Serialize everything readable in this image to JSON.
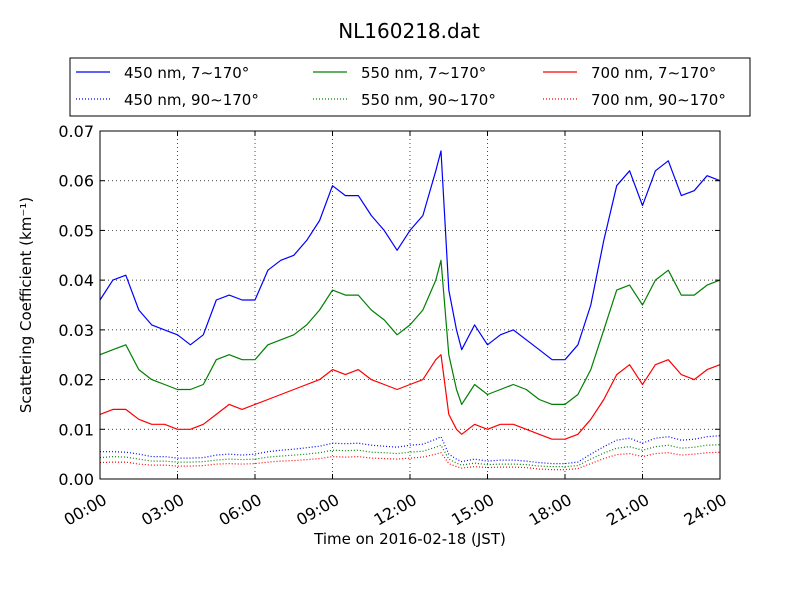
{
  "chart_data": {
    "type": "line",
    "title": "NL160218.dat",
    "xlabel": "Time on 2016-02-18 (JST)",
    "ylabel": "Scattering Coefficient (km⁻¹)",
    "x_unit": "hours",
    "xlim": [
      0,
      24
    ],
    "ylim": [
      0,
      0.07
    ],
    "x_ticks": [
      0,
      3,
      6,
      9,
      12,
      15,
      18,
      21,
      24
    ],
    "x_tick_labels": [
      "00:00",
      "03:00",
      "06:00",
      "09:00",
      "12:00",
      "15:00",
      "18:00",
      "21:00",
      "24:00"
    ],
    "y_ticks": [
      0,
      0.01,
      0.02,
      0.03,
      0.04,
      0.05,
      0.06,
      0.07
    ],
    "y_tick_labels": [
      "0.00",
      "0.01",
      "0.02",
      "0.03",
      "0.04",
      "0.05",
      "0.06",
      "0.07"
    ],
    "grid": true,
    "legend_position": "top, above plot, 3 columns",
    "x": [
      0,
      0.5,
      1,
      1.5,
      2,
      2.5,
      3,
      3.5,
      4,
      4.5,
      5,
      5.5,
      6,
      6.5,
      7,
      7.5,
      8,
      8.5,
      9,
      9.5,
      10,
      10.5,
      11,
      11.5,
      12,
      12.5,
      13,
      13.2,
      13.5,
      13.8,
      14,
      14.5,
      15,
      15.5,
      16,
      16.5,
      17,
      17.5,
      18,
      18.5,
      19,
      19.5,
      20,
      20.5,
      21,
      21.5,
      22,
      22.5,
      23,
      23.5,
      24
    ],
    "series": [
      {
        "name": "450 nm, 7∼170°",
        "color": "#0000ff",
        "style": "solid",
        "values": [
          0.036,
          0.04,
          0.041,
          0.034,
          0.031,
          0.03,
          0.029,
          0.027,
          0.029,
          0.036,
          0.037,
          0.036,
          0.036,
          0.042,
          0.044,
          0.045,
          0.048,
          0.052,
          0.059,
          0.057,
          0.057,
          0.053,
          0.05,
          0.046,
          0.05,
          0.053,
          0.062,
          0.066,
          0.038,
          0.03,
          0.026,
          0.031,
          0.027,
          0.029,
          0.03,
          0.028,
          0.026,
          0.024,
          0.024,
          0.027,
          0.035,
          0.048,
          0.059,
          0.062,
          0.055,
          0.062,
          0.064,
          0.057,
          0.058,
          0.061,
          0.06
        ]
      },
      {
        "name": "550 nm, 7∼170°",
        "color": "#008000",
        "style": "solid",
        "values": [
          0.025,
          0.026,
          0.027,
          0.022,
          0.02,
          0.019,
          0.018,
          0.018,
          0.019,
          0.024,
          0.025,
          0.024,
          0.024,
          0.027,
          0.028,
          0.029,
          0.031,
          0.034,
          0.038,
          0.037,
          0.037,
          0.034,
          0.032,
          0.029,
          0.031,
          0.034,
          0.04,
          0.044,
          0.025,
          0.018,
          0.015,
          0.019,
          0.017,
          0.018,
          0.019,
          0.018,
          0.016,
          0.015,
          0.015,
          0.017,
          0.022,
          0.03,
          0.038,
          0.039,
          0.035,
          0.04,
          0.042,
          0.037,
          0.037,
          0.039,
          0.04
        ]
      },
      {
        "name": "700 nm, 7∼170°",
        "color": "#ff0000",
        "style": "solid",
        "values": [
          0.013,
          0.014,
          0.014,
          0.012,
          0.011,
          0.011,
          0.01,
          0.01,
          0.011,
          0.013,
          0.015,
          0.014,
          0.015,
          0.016,
          0.017,
          0.018,
          0.019,
          0.02,
          0.022,
          0.021,
          0.022,
          0.02,
          0.019,
          0.018,
          0.019,
          0.02,
          0.024,
          0.025,
          0.013,
          0.01,
          0.009,
          0.011,
          0.01,
          0.011,
          0.011,
          0.01,
          0.009,
          0.008,
          0.008,
          0.009,
          0.012,
          0.016,
          0.021,
          0.023,
          0.019,
          0.023,
          0.024,
          0.021,
          0.02,
          0.022,
          0.023
        ]
      },
      {
        "name": "450 nm, 90∼170°",
        "color": "#0000ff",
        "style": "dotted",
        "values": [
          0.0055,
          0.0055,
          0.0054,
          0.005,
          0.0045,
          0.0045,
          0.0042,
          0.0042,
          0.0043,
          0.0048,
          0.005,
          0.0048,
          0.005,
          0.0055,
          0.0058,
          0.006,
          0.0063,
          0.0066,
          0.0072,
          0.0071,
          0.0072,
          0.0068,
          0.0066,
          0.0064,
          0.0068,
          0.007,
          0.008,
          0.0085,
          0.005,
          0.004,
          0.0035,
          0.004,
          0.0036,
          0.0038,
          0.0038,
          0.0036,
          0.0033,
          0.0031,
          0.0031,
          0.0034,
          0.005,
          0.0065,
          0.0078,
          0.0082,
          0.0072,
          0.0082,
          0.0085,
          0.0078,
          0.008,
          0.0085,
          0.0087
        ]
      },
      {
        "name": "550 nm, 90∼170°",
        "color": "#008000",
        "style": "dotted",
        "values": [
          0.0043,
          0.0045,
          0.0044,
          0.004,
          0.0036,
          0.0036,
          0.0034,
          0.0034,
          0.0035,
          0.0038,
          0.004,
          0.0039,
          0.004,
          0.0044,
          0.0046,
          0.0048,
          0.005,
          0.0053,
          0.0058,
          0.0057,
          0.0058,
          0.0054,
          0.0053,
          0.0051,
          0.0054,
          0.0056,
          0.0064,
          0.0068,
          0.004,
          0.0032,
          0.0028,
          0.0032,
          0.0029,
          0.003,
          0.003,
          0.0029,
          0.0026,
          0.0025,
          0.0025,
          0.0027,
          0.004,
          0.0052,
          0.0062,
          0.0065,
          0.0058,
          0.0065,
          0.0068,
          0.0062,
          0.0064,
          0.0068,
          0.0069
        ]
      },
      {
        "name": "700 nm, 90∼170°",
        "color": "#ff0000",
        "style": "dotted",
        "values": [
          0.0033,
          0.0034,
          0.0034,
          0.003,
          0.0028,
          0.0028,
          0.0026,
          0.0026,
          0.0027,
          0.003,
          0.0031,
          0.003,
          0.0031,
          0.0034,
          0.0036,
          0.0037,
          0.0039,
          0.0041,
          0.0045,
          0.0044,
          0.0045,
          0.0042,
          0.0041,
          0.004,
          0.0042,
          0.0044,
          0.005,
          0.0053,
          0.0031,
          0.0025,
          0.0022,
          0.0025,
          0.0023,
          0.0024,
          0.0024,
          0.0023,
          0.002,
          0.0019,
          0.0019,
          0.0021,
          0.0031,
          0.0041,
          0.0049,
          0.0051,
          0.0045,
          0.0051,
          0.0053,
          0.0048,
          0.005,
          0.0053,
          0.0054
        ]
      }
    ]
  }
}
